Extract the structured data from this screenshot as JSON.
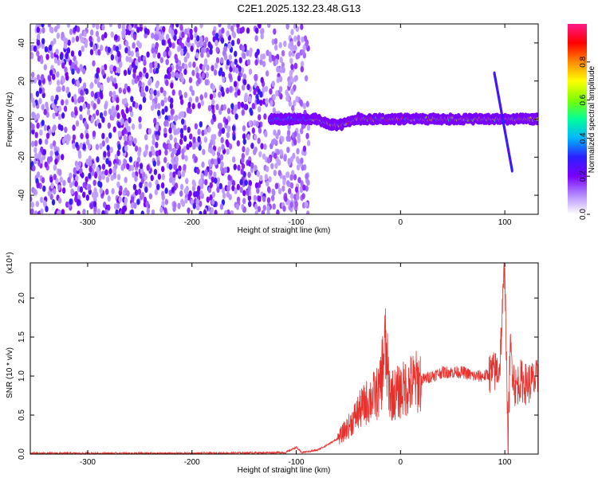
{
  "page_title": "C2E1.2025.132.23.48.G13",
  "chart_data": [
    {
      "type": "heatmap",
      "xlabel": "Height of straight line (km)",
      "ylabel": "Frequency (Hz)",
      "xlim": [
        -355,
        132
      ],
      "ylim": [
        -50,
        50
      ],
      "x_ticks": [
        -300,
        -200,
        -100,
        0,
        100
      ],
      "y_ticks": [
        -40,
        -20,
        0,
        20,
        40
      ],
      "colorbar": {
        "label": "Normalized spectral amplitude",
        "range": [
          0,
          1
        ],
        "ticks": [
          "0.0",
          "0.2",
          "0.4",
          "0.6",
          "0.8"
        ],
        "colormap": "rainbow",
        "stops": [
          "#ffffff",
          "#b48cff",
          "#7a00ff",
          "#2a20ff",
          "#00b4ff",
          "#00ff9a",
          "#7cff00",
          "#ffff00",
          "#ff8a00",
          "#ff0000",
          "#ff1a88"
        ]
      },
      "features": {
        "noise_region_x": [
          -355,
          -88
        ],
        "carrier_band_x": [
          -125,
          132
        ],
        "carrier_frequency": 0,
        "dispersed_trace": {
          "x": [
            90,
            107
          ],
          "y": [
            24,
            -27
          ]
        }
      },
      "colors": {
        "low": "#7a00ff",
        "mid": "#00ff9a",
        "high": "#ff0000"
      }
    },
    {
      "type": "line",
      "xlabel": "Height of straight line (km)",
      "ylabel": "SNR (10 * v/v)",
      "y_multiplier": "(x10⁴)",
      "xlim": [
        -355,
        132
      ],
      "ylim": [
        0,
        2.45
      ],
      "x_ticks": [
        -300,
        -200,
        -100,
        0,
        100
      ],
      "y_ticks": [
        "0.0",
        "0.5",
        "1.0",
        "1.5",
        "2.0"
      ],
      "series": [
        {
          "color": "#e8312c",
          "x": [
            -355,
            -300,
            -200,
            -110,
            -100,
            -95,
            -80,
            -70,
            -60,
            -50,
            -40,
            -30,
            -20,
            -15,
            -10,
            0,
            10,
            20,
            30,
            40,
            50,
            60,
            70,
            80,
            90,
            95,
            100,
            103,
            105,
            110,
            115,
            120,
            132
          ],
          "y": [
            0.01,
            0.01,
            0.01,
            0.02,
            0.09,
            0.02,
            0.05,
            0.12,
            0.2,
            0.35,
            0.55,
            0.7,
            0.8,
            1.4,
            0.75,
            0.8,
            0.9,
            0.95,
            1.0,
            1.05,
            1.05,
            1.05,
            1.0,
            1.0,
            1.05,
            1.1,
            2.45,
            0.05,
            1.35,
            0.85,
            0.95,
            0.9,
            0.95
          ]
        }
      ]
    }
  ]
}
